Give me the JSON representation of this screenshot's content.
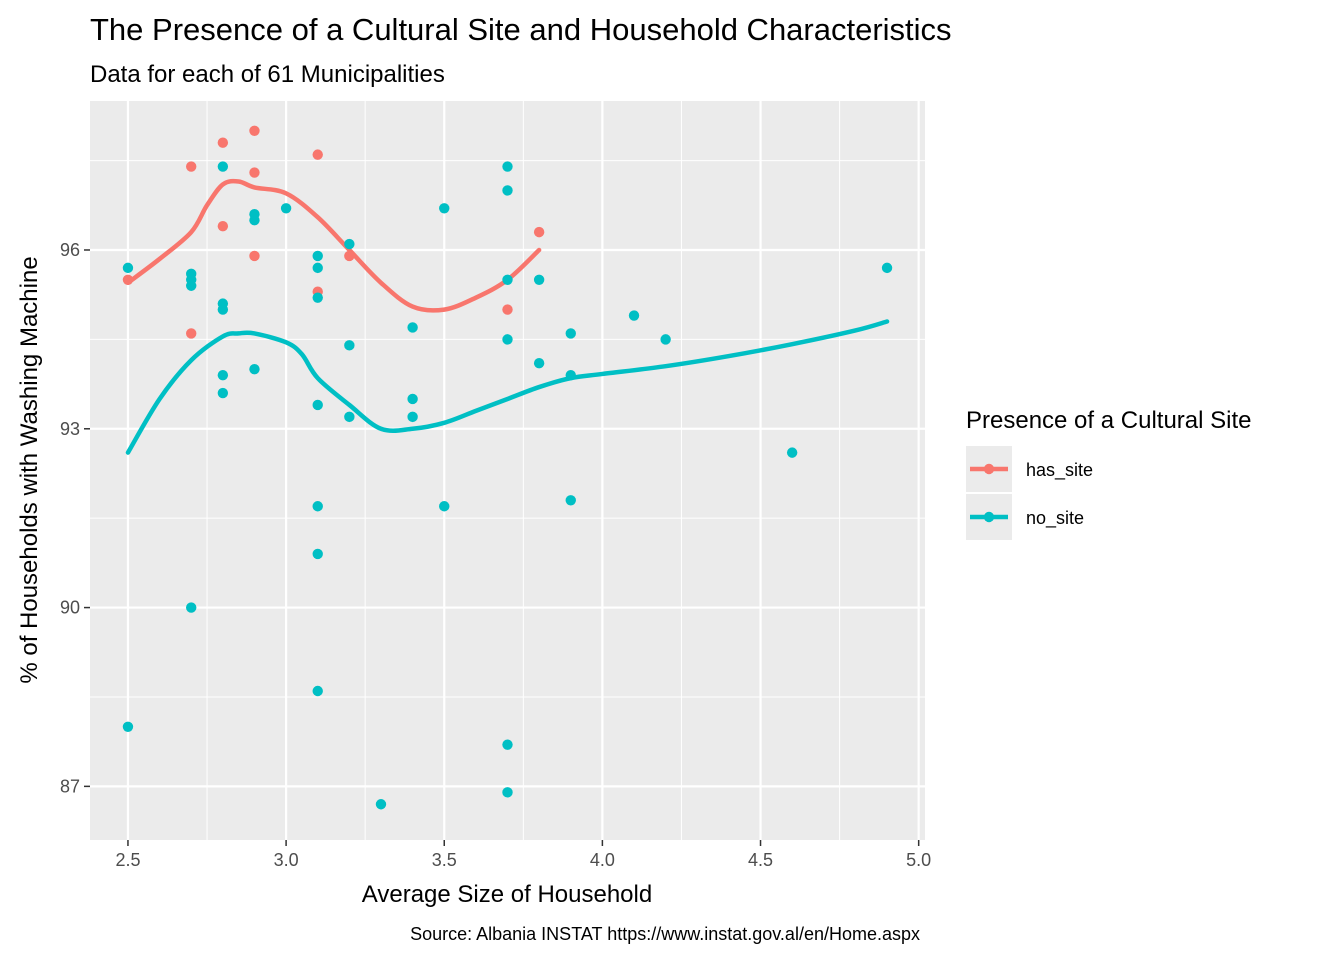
{
  "chart_data": {
    "type": "scatter",
    "title": "The Presence of a Cultural Site and Household Characteristics",
    "subtitle": "Data for each of 61 Municipalities",
    "xlabel": "Average Size of Household",
    "ylabel": "% of Households with Washing Machine",
    "caption": "Source: Albania INSTAT https://www.instat.gov.al/en/Home.aspx",
    "xlim": [
      2.38,
      5.02
    ],
    "ylim": [
      86.1,
      98.5
    ],
    "x_ticks": [
      2.5,
      3.0,
      3.5,
      4.0,
      4.5,
      5.0
    ],
    "x_tick_labels": [
      "2.5",
      "3.0",
      "3.5",
      "4.0",
      "4.5",
      "5.0"
    ],
    "y_ticks": [
      87,
      90,
      93,
      96
    ],
    "y_tick_labels": [
      "87",
      "90",
      "93",
      "96"
    ],
    "grid": true,
    "legend": {
      "title": "Presence of a Cultural Site",
      "position": "right"
    },
    "series": [
      {
        "name": "has_site",
        "color": "#F8766D",
        "points": [
          [
            2.5,
            95.5
          ],
          [
            2.7,
            97.4
          ],
          [
            2.7,
            94.6
          ],
          [
            2.8,
            97.8
          ],
          [
            2.8,
            96.4
          ],
          [
            2.9,
            98.0
          ],
          [
            2.9,
            97.3
          ],
          [
            2.9,
            95.9
          ],
          [
            3.1,
            97.6
          ],
          [
            3.1,
            95.3
          ],
          [
            3.2,
            95.9
          ],
          [
            3.7,
            95.0
          ],
          [
            3.8,
            96.3
          ]
        ],
        "smooth": [
          [
            2.5,
            95.45
          ],
          [
            2.6,
            95.85
          ],
          [
            2.7,
            96.3
          ],
          [
            2.75,
            96.75
          ],
          [
            2.8,
            97.1
          ],
          [
            2.85,
            97.15
          ],
          [
            2.9,
            97.05
          ],
          [
            3.0,
            96.95
          ],
          [
            3.1,
            96.55
          ],
          [
            3.2,
            96.0
          ],
          [
            3.3,
            95.45
          ],
          [
            3.4,
            95.05
          ],
          [
            3.5,
            95.0
          ],
          [
            3.6,
            95.2
          ],
          [
            3.7,
            95.5
          ],
          [
            3.8,
            96.0
          ]
        ]
      },
      {
        "name": "no_site",
        "color": "#00BFC4",
        "points": [
          [
            2.5,
            95.7
          ],
          [
            2.5,
            88.0
          ],
          [
            2.7,
            95.6
          ],
          [
            2.7,
            95.5
          ],
          [
            2.7,
            95.4
          ],
          [
            2.7,
            90.0
          ],
          [
            2.8,
            97.4
          ],
          [
            2.8,
            95.1
          ],
          [
            2.8,
            95.0
          ],
          [
            2.8,
            93.9
          ],
          [
            2.8,
            93.6
          ],
          [
            2.9,
            96.6
          ],
          [
            2.9,
            96.5
          ],
          [
            2.9,
            94.0
          ],
          [
            3.0,
            96.7
          ],
          [
            3.1,
            95.9
          ],
          [
            3.1,
            95.7
          ],
          [
            3.1,
            95.2
          ],
          [
            3.1,
            93.4
          ],
          [
            3.1,
            91.7
          ],
          [
            3.1,
            90.9
          ],
          [
            3.1,
            88.6
          ],
          [
            3.2,
            96.1
          ],
          [
            3.2,
            94.4
          ],
          [
            3.2,
            93.2
          ],
          [
            3.3,
            86.7
          ],
          [
            3.4,
            94.7
          ],
          [
            3.4,
            93.5
          ],
          [
            3.4,
            93.2
          ],
          [
            3.5,
            96.7
          ],
          [
            3.5,
            91.7
          ],
          [
            3.7,
            97.4
          ],
          [
            3.7,
            97.0
          ],
          [
            3.7,
            95.5
          ],
          [
            3.7,
            94.5
          ],
          [
            3.7,
            87.7
          ],
          [
            3.7,
            86.9
          ],
          [
            3.8,
            95.5
          ],
          [
            3.8,
            94.1
          ],
          [
            3.9,
            94.6
          ],
          [
            3.9,
            93.9
          ],
          [
            3.9,
            91.8
          ],
          [
            4.1,
            94.9
          ],
          [
            4.2,
            94.5
          ],
          [
            4.6,
            92.6
          ],
          [
            4.9,
            95.7
          ]
        ],
        "smooth": [
          [
            2.5,
            92.6
          ],
          [
            2.6,
            93.5
          ],
          [
            2.7,
            94.15
          ],
          [
            2.8,
            94.55
          ],
          [
            2.85,
            94.6
          ],
          [
            2.9,
            94.6
          ],
          [
            3.0,
            94.45
          ],
          [
            3.05,
            94.25
          ],
          [
            3.1,
            93.85
          ],
          [
            3.2,
            93.4
          ],
          [
            3.3,
            93.0
          ],
          [
            3.4,
            93.0
          ],
          [
            3.5,
            93.1
          ],
          [
            3.6,
            93.3
          ],
          [
            3.7,
            93.5
          ],
          [
            3.8,
            93.7
          ],
          [
            3.9,
            93.85
          ],
          [
            4.0,
            93.92
          ],
          [
            4.2,
            94.05
          ],
          [
            4.4,
            94.22
          ],
          [
            4.6,
            94.42
          ],
          [
            4.8,
            94.65
          ],
          [
            4.9,
            94.8
          ]
        ]
      }
    ]
  }
}
